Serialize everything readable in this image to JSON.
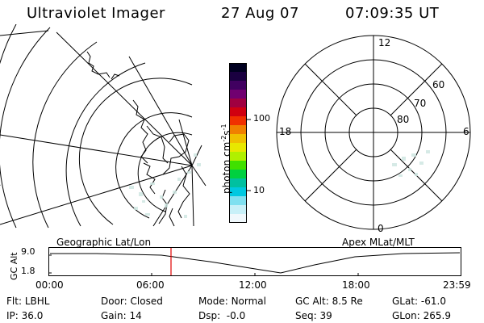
{
  "header": {
    "instrument": "Ultraviolet Imager",
    "date": "27 Aug 07",
    "time": "07:09:35 UT"
  },
  "colorbar": {
    "unit_label": "photon cm",
    "unit_exp1": "-2",
    "unit_mid": "s",
    "unit_exp2": "-1",
    "ticks": [
      "100",
      "10"
    ],
    "colors": [
      "#000020",
      "#1a0040",
      "#400060",
      "#700070",
      "#a00040",
      "#d00010",
      "#f03000",
      "#f08000",
      "#f0c000",
      "#e8e800",
      "#b0f000",
      "#40e000",
      "#00d040",
      "#00c0a0",
      "#00c8e0",
      "#80e0f0",
      "#c8f0f8",
      "#f0f8fc"
    ]
  },
  "polar": {
    "labels": {
      "top": "12",
      "left": "18",
      "right": "6",
      "bottom": "0"
    },
    "rings": [
      "60",
      "70",
      "80"
    ]
  },
  "maps": {
    "left_title": "Geographic Lat/Lon",
    "right_title": "Apex MLat/MLT"
  },
  "altitude_plot": {
    "ylabel": "GC Alt",
    "yticks": [
      "9.0",
      "1.8"
    ],
    "xticks": [
      "00:00",
      "06:00",
      "12:00",
      "18:00",
      "23:59"
    ],
    "marker_color": "#e00000"
  },
  "status": {
    "row1": [
      {
        "label": "Flt:",
        "value": "LBHL"
      },
      {
        "label": "Door:",
        "value": "Closed"
      },
      {
        "label": "Mode:",
        "value": "Normal"
      },
      {
        "label": "GC Alt:",
        "value": "8.5 Re"
      },
      {
        "label": "GLat:",
        "value": "-61.0"
      }
    ],
    "row2": [
      {
        "label": "IP:",
        "value": "36.0"
      },
      {
        "label": "Gain:",
        "value": "14"
      },
      {
        "label": "Dsp:",
        "value": "-0.0"
      },
      {
        "label": "Seq:",
        "value": "39"
      },
      {
        "label": "GLon:",
        "value": "265.9"
      }
    ]
  }
}
